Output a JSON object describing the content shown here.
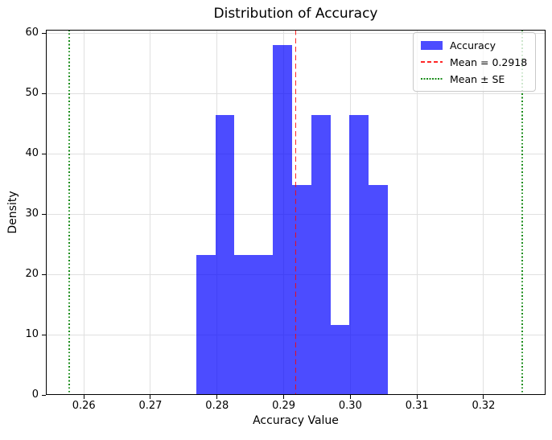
{
  "chart_data": {
    "type": "bar",
    "subtype": "histogram-density",
    "title": "Distribution of Accuracy",
    "xlabel": "Accuracy Value",
    "ylabel": "Density",
    "series": [
      {
        "name": "Accuracy",
        "bin_edges": [
          0.2769,
          0.2798,
          0.2826,
          0.2855,
          0.2884,
          0.2912,
          0.2941,
          0.297,
          0.2998,
          0.3027,
          0.3056
        ],
        "values": [
          23.2,
          46.5,
          23.2,
          23.2,
          58.1,
          34.8,
          46.5,
          11.6,
          46.5,
          34.8
        ]
      }
    ],
    "annotations": {
      "mean_line": {
        "x": 0.2918,
        "style": "dashed",
        "color": "#ff0000",
        "label": "Mean = 0.2918"
      },
      "se_lines": {
        "x": [
          0.2578,
          0.3258
        ],
        "style": "dotted",
        "color": "#008000",
        "label": "Mean ± SE"
      }
    },
    "xlim": [
      0.2543,
      0.3293
    ],
    "ylim": [
      0,
      60.6
    ],
    "xticks": [
      {
        "v": 0.26,
        "label": "0.26"
      },
      {
        "v": 0.27,
        "label": "0.27"
      },
      {
        "v": 0.28,
        "label": "0.28"
      },
      {
        "v": 0.29,
        "label": "0.29"
      },
      {
        "v": 0.3,
        "label": "0.30"
      },
      {
        "v": 0.31,
        "label": "0.31"
      },
      {
        "v": 0.32,
        "label": "0.32"
      }
    ],
    "yticks": [
      {
        "v": 0,
        "label": "0"
      },
      {
        "v": 10,
        "label": "10"
      },
      {
        "v": 20,
        "label": "20"
      },
      {
        "v": 30,
        "label": "30"
      },
      {
        "v": 40,
        "label": "40"
      },
      {
        "v": 50,
        "label": "50"
      },
      {
        "v": 60,
        "label": "60"
      }
    ],
    "grid": true,
    "legend": {
      "position": "upper right",
      "entries": [
        {
          "label": "Accuracy",
          "swatch": "patch",
          "color": "#0000ff",
          "alpha": 0.7
        },
        {
          "label": "Mean = 0.2918",
          "swatch": "dashed-line",
          "color": "#ff0000",
          "alpha": 0.85
        },
        {
          "label": "Mean ± SE",
          "swatch": "dotted-line",
          "color": "#008000",
          "alpha": 0.9
        }
      ]
    },
    "colors": {
      "bar_fill": "#0000ff",
      "bar_alpha": 0.7,
      "grid": "#e0e0e0",
      "spine": "#000000",
      "background": "#ffffff"
    }
  }
}
